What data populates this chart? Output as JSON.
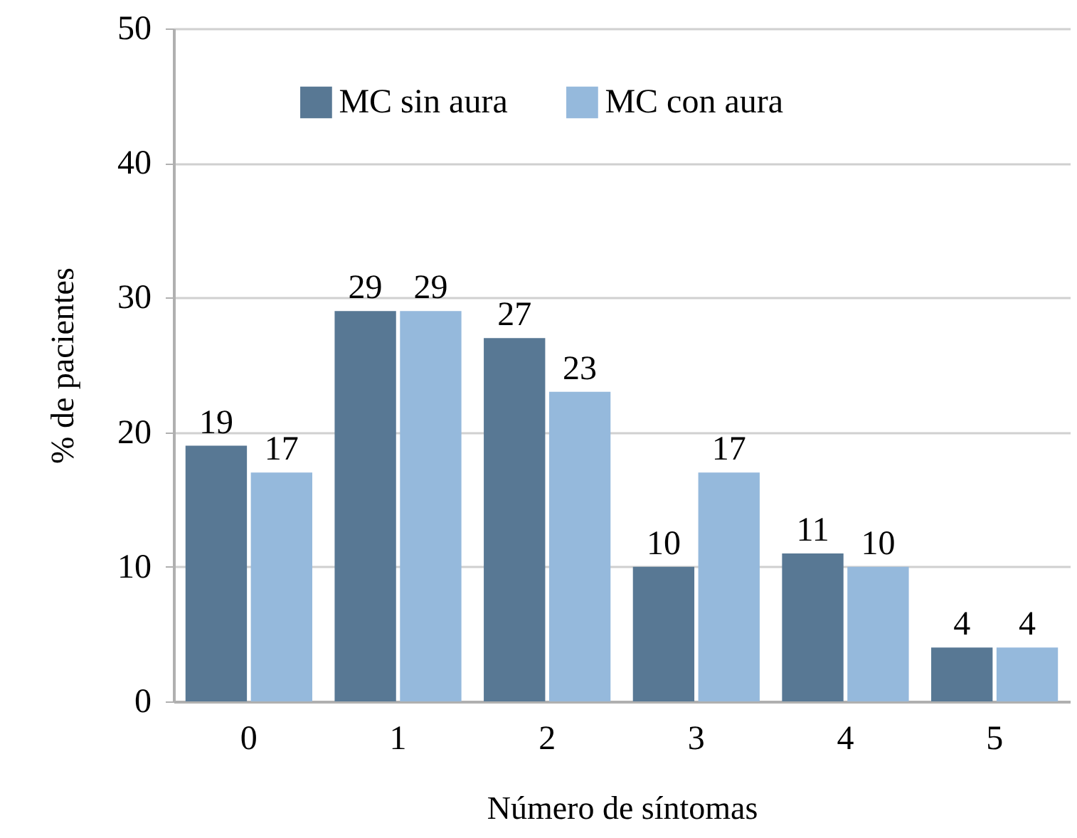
{
  "chart_data": {
    "type": "bar",
    "xlabel": "Número de síntomas",
    "ylabel": "% de pacientes",
    "categories": [
      "0",
      "1",
      "2",
      "3",
      "4",
      "5"
    ],
    "series": [
      {
        "name": "MC sin aura",
        "color": "#587894",
        "values": [
          19,
          29,
          27,
          10,
          11,
          4
        ]
      },
      {
        "name": "MC con aura",
        "color": "#95b9dc",
        "values": [
          17,
          29,
          23,
          17,
          10,
          4
        ]
      }
    ],
    "ylim": [
      0,
      50
    ],
    "yticks": [
      0,
      10,
      20,
      30,
      40,
      50
    ],
    "grid": "y",
    "legend": "top",
    "data_labels": true
  }
}
